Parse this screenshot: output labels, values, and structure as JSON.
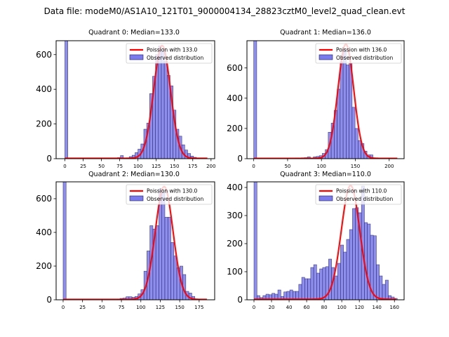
{
  "figure": {
    "suptitle": "Data file: modeM0/AS1A10_121T01_9000004134_28823cztM0_level2_quad_clean.evt"
  },
  "colors": {
    "bar_fill": "#7a7aec",
    "bar_edge": "#202060",
    "poisson_line": "#ff0000",
    "axes": "#000000"
  },
  "chart_data": [
    {
      "type": "bar",
      "title": "Quadrant 0: Median=133.0",
      "median": 133.0,
      "xlim": [
        -12,
        205
      ],
      "ylim": [
        0,
        680
      ],
      "xticks": [
        0,
        25,
        50,
        75,
        100,
        125,
        150,
        175,
        200
      ],
      "yticks": [
        0,
        200,
        400,
        600
      ],
      "bin_width": 4,
      "bin_starts": [
        0,
        4,
        8,
        12,
        16,
        20,
        24,
        28,
        32,
        36,
        40,
        44,
        48,
        52,
        56,
        60,
        64,
        68,
        72,
        76,
        80,
        84,
        88,
        92,
        96,
        100,
        104,
        108,
        112,
        116,
        120,
        124,
        128,
        132,
        136,
        140,
        144,
        148,
        152,
        156,
        160,
        164,
        168,
        172,
        176,
        180,
        184,
        188
      ],
      "values": [
        680,
        0,
        0,
        0,
        0,
        0,
        0,
        0,
        0,
        0,
        0,
        0,
        0,
        0,
        0,
        0,
        0,
        0,
        6,
        18,
        0,
        5,
        12,
        20,
        35,
        55,
        85,
        170,
        205,
        375,
        475,
        600,
        650,
        620,
        560,
        480,
        420,
        280,
        170,
        130,
        80,
        50,
        30,
        15,
        8,
        3,
        0,
        0
      ],
      "legend": {
        "line_label": "Poission with 133.0",
        "bar_label": "Observed distribution",
        "position": "upper-right"
      },
      "poisson_mean": 133.0,
      "poisson_peak": 650,
      "curve_range": [
        0,
        195
      ]
    },
    {
      "type": "bar",
      "title": "Quadrant 1: Median=136.0",
      "median": 136.0,
      "xlim": [
        -10,
        222
      ],
      "ylim": [
        0,
        780
      ],
      "xticks": [
        0,
        50,
        100,
        150,
        200
      ],
      "yticks": [
        0,
        200,
        400,
        600
      ],
      "bin_width": 4.4,
      "bin_starts": [
        0,
        4.4,
        8.8,
        13.2,
        17.6,
        22,
        26.4,
        30.8,
        35.2,
        39.6,
        44,
        48.4,
        52.8,
        57.2,
        61.6,
        66,
        70.4,
        74.8,
        79.2,
        83.6,
        88,
        92.4,
        96.8,
        101.2,
        105.6,
        110,
        114.4,
        118.8,
        123.2,
        127.6,
        132,
        136.4,
        140.8,
        145.2,
        149.6,
        154,
        158.4,
        162.8,
        167.2,
        171.6,
        176,
        180.4,
        184.8,
        189.2,
        193.6,
        198,
        202.4,
        206.8
      ],
      "values": [
        780,
        0,
        0,
        0,
        0,
        0,
        0,
        0,
        0,
        0,
        0,
        0,
        0,
        0,
        5,
        3,
        6,
        7,
        12,
        3,
        12,
        15,
        20,
        35,
        60,
        175,
        235,
        320,
        460,
        640,
        725,
        620,
        630,
        340,
        200,
        120,
        100,
        50,
        25,
        25,
        5,
        3,
        0,
        0,
        0,
        0,
        0,
        0
      ],
      "legend": {
        "line_label": "Poission with 136.0",
        "bar_label": "Observed distribution",
        "position": "upper-right"
      },
      "poisson_mean": 136.0,
      "poisson_peak": 755,
      "curve_range": [
        0,
        212
      ]
    },
    {
      "type": "bar",
      "title": "Quadrant 2: Median=130.0",
      "median": 130.0,
      "xlim": [
        -9,
        195
      ],
      "ylim": [
        0,
        700
      ],
      "xticks": [
        0,
        25,
        50,
        75,
        100,
        125,
        150,
        175
      ],
      "yticks": [
        0,
        200,
        400,
        600
      ],
      "bin_width": 3.85,
      "bin_starts": [
        0,
        3.85,
        7.7,
        11.55,
        15.4,
        19.25,
        23.1,
        26.95,
        30.8,
        34.65,
        38.5,
        42.35,
        46.2,
        50.05,
        53.9,
        57.75,
        61.6,
        65.45,
        69.3,
        73.15,
        77,
        80.85,
        84.7,
        88.55,
        92.4,
        96.25,
        100.1,
        103.95,
        107.8,
        111.65,
        115.5,
        119.35,
        123.2,
        127.05,
        130.9,
        134.75,
        138.6,
        142.45,
        146.3,
        150.15,
        154,
        157.85,
        161.7,
        165.55,
        169.4,
        173.25,
        177.1,
        180.95
      ],
      "values": [
        700,
        0,
        0,
        0,
        0,
        0,
        0,
        0,
        0,
        0,
        0,
        0,
        0,
        0,
        0,
        0,
        0,
        0,
        3,
        8,
        10,
        18,
        18,
        15,
        20,
        35,
        60,
        170,
        290,
        440,
        420,
        440,
        660,
        640,
        490,
        490,
        340,
        260,
        190,
        200,
        150,
        50,
        40,
        20,
        5,
        3,
        0,
        0
      ],
      "legend": {
        "line_label": "Poission with 130.0",
        "bar_label": "Observed distribution",
        "position": "upper-right"
      },
      "poisson_mean": 130.0,
      "poisson_peak": 670,
      "curve_range": [
        0,
        185
      ]
    },
    {
      "type": "bar",
      "title": "Quadrant 3: Median=110.0",
      "median": 110.0,
      "xlim": [
        -8,
        171
      ],
      "ylim": [
        0,
        420
      ],
      "xticks": [
        0,
        20,
        40,
        60,
        80,
        100,
        120,
        140,
        160
      ],
      "yticks": [
        0,
        100,
        200,
        300,
        400
      ],
      "bin_width": 3.4,
      "bin_starts": [
        0,
        3.4,
        6.8,
        10.2,
        13.6,
        17,
        20.4,
        23.8,
        27.2,
        30.6,
        34,
        37.4,
        40.8,
        44.2,
        47.6,
        51,
        54.4,
        57.8,
        61.2,
        64.6,
        68,
        71.4,
        74.8,
        78.2,
        81.6,
        85,
        88.4,
        91.8,
        95.2,
        98.6,
        102,
        105.4,
        108.8,
        112.2,
        115.6,
        119,
        122.4,
        125.8,
        129.2,
        132.6,
        136,
        139.4,
        142.8,
        146.2,
        149.6,
        153,
        156.4,
        159.8
      ],
      "values": [
        420,
        15,
        8,
        15,
        20,
        18,
        23,
        20,
        35,
        12,
        28,
        30,
        35,
        30,
        30,
        55,
        80,
        75,
        75,
        115,
        125,
        95,
        110,
        115,
        118,
        145,
        115,
        85,
        130,
        195,
        170,
        215,
        250,
        325,
        328,
        310,
        405,
        275,
        270,
        230,
        228,
        125,
        85,
        55,
        70,
        15,
        10,
        5
      ],
      "legend": {
        "line_label": "Poission with 110.0",
        "bar_label": "Observed distribution",
        "position": "upper-right"
      },
      "poisson_mean": 110.0,
      "poisson_peak": 405,
      "curve_range": [
        0,
        162
      ]
    }
  ]
}
